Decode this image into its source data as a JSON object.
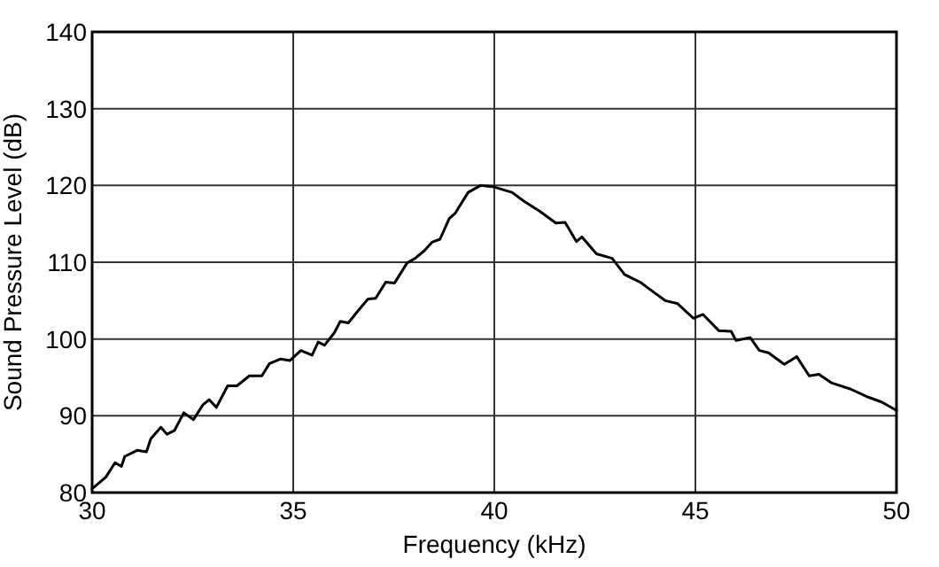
{
  "chart_data": {
    "type": "line",
    "xlabel": "Frequency (kHz)",
    "ylabel": "Sound Pressure Level (dB)",
    "xlim": [
      30,
      50
    ],
    "ylim": [
      80,
      140
    ],
    "xticks": [
      30,
      35,
      40,
      45,
      50
    ],
    "yticks": [
      80,
      90,
      100,
      110,
      120,
      130,
      140
    ],
    "grid": true,
    "marker": "none",
    "line_style": "solid",
    "series": [
      {
        "color": "#000000",
        "x": [
          30,
          30.34,
          30.57,
          30.73,
          30.81,
          31.12,
          31.35,
          31.46,
          31.71,
          31.86,
          32.05,
          32.28,
          32.52,
          32.75,
          32.91,
          33.09,
          33.37,
          33.6,
          33.91,
          34.22,
          34.41,
          34.69,
          34.92,
          35.19,
          35.47,
          35.62,
          35.78,
          36.02,
          36.17,
          36.37,
          36.63,
          36.86,
          37.05,
          37.3,
          37.52,
          37.83,
          38.03,
          38.26,
          38.45,
          38.65,
          38.88,
          39.03,
          39.35,
          39.66,
          40,
          40.44,
          40.75,
          41.14,
          41.53,
          41.76,
          42.04,
          42.18,
          42.54,
          42.93,
          43.24,
          43.63,
          43.86,
          44.25,
          44.56,
          44.95,
          45.19,
          45.58,
          45.89,
          46.01,
          46.36,
          46.59,
          46.82,
          47.21,
          47.52,
          47.83,
          48.07,
          48.38,
          48.85,
          49.31,
          49.63,
          50
        ],
        "values": [
          80.5,
          82,
          83.9,
          83.4,
          84.7,
          85.5,
          85.3,
          87,
          88.5,
          87.6,
          88.1,
          90.4,
          89.5,
          91.4,
          92.1,
          91.1,
          93.9,
          93.9,
          95.2,
          95.2,
          96.8,
          97.4,
          97.2,
          98.5,
          97.9,
          99.6,
          99.2,
          100.8,
          102.3,
          102.1,
          103.8,
          105.2,
          105.3,
          107.4,
          107.3,
          109.9,
          110.5,
          111.5,
          112.6,
          113,
          115.7,
          116.4,
          119.1,
          120,
          119.8,
          119.1,
          117.9,
          116.6,
          115.1,
          115.2,
          112.7,
          113.3,
          111.1,
          110.5,
          108.4,
          107.4,
          106.5,
          105,
          104.6,
          102.7,
          103.2,
          101.1,
          101,
          99.8,
          100.2,
          98.5,
          98.2,
          96.7,
          97.7,
          95.2,
          95.4,
          94.3,
          93.5,
          92.4,
          91.8,
          90.7
        ]
      }
    ]
  }
}
